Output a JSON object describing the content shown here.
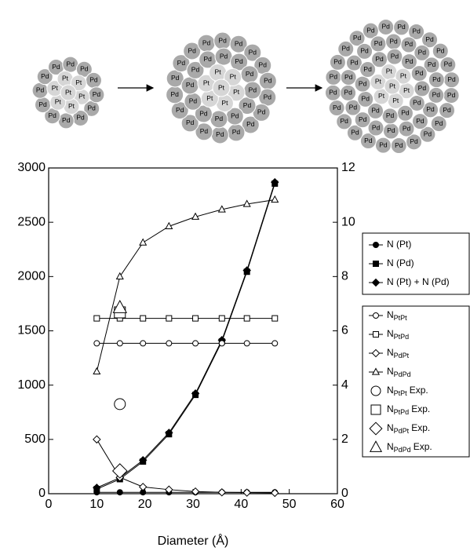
{
  "diagram": {
    "clusters": [
      {
        "rings": [
          [
            "Pt"
          ],
          [
            "Pt",
            "Pt",
            "Pt",
            "Pt",
            "Pt",
            "Pt"
          ],
          [
            "Pd",
            "Pd",
            "Pd",
            "Pd",
            "Pd",
            "Pd",
            "Pd",
            "Pd",
            "Pd",
            "Pd",
            "Pd",
            "Pd"
          ]
        ]
      },
      {
        "rings": [
          [
            "Pt"
          ],
          [
            "Pt",
            "Pt",
            "Pt",
            "Pt",
            "Pt",
            "Pt"
          ],
          [
            "Pd",
            "Pd",
            "Pd",
            "Pd",
            "Pd",
            "Pd",
            "Pd",
            "Pd",
            "Pd",
            "Pd",
            "Pd",
            "Pd"
          ],
          [
            "Pd",
            "Pd",
            "Pd",
            "Pd",
            "Pd",
            "Pd",
            "Pd",
            "Pd",
            "Pd",
            "Pd",
            "Pd",
            "Pd",
            "Pd",
            "Pd",
            "Pd",
            "Pd",
            "Pd",
            "Pd"
          ]
        ]
      },
      {
        "rings": [
          [
            "Pt"
          ],
          [
            "Pt",
            "Pt",
            "Pt",
            "Pt",
            "Pt",
            "Pt"
          ],
          [
            "Pd",
            "Pd",
            "Pd",
            "Pd",
            "Pd",
            "Pd",
            "Pd",
            "Pd",
            "Pd",
            "Pd",
            "Pd",
            "Pd"
          ],
          [
            "Pd",
            "Pd",
            "Pd",
            "Pd",
            "Pd",
            "Pd",
            "Pd",
            "Pd",
            "Pd",
            "Pd",
            "Pd",
            "Pd",
            "Pd",
            "Pd",
            "Pd",
            "Pd",
            "Pd",
            "Pd"
          ],
          [
            "Pd",
            "Pd",
            "Pd",
            "Pd",
            "Pd",
            "Pd",
            "Pd",
            "Pd",
            "Pd",
            "Pd",
            "Pd",
            "Pd",
            "Pd",
            "Pd",
            "Pd",
            "Pd",
            "Pd",
            "Pd",
            "Pd",
            "Pd",
            "Pd",
            "Pd",
            "Pd",
            "Pd"
          ]
        ]
      }
    ]
  },
  "chart_data": {
    "type": "line",
    "x_label": "Diameter (Å)",
    "xlim": [
      0,
      60
    ],
    "xticks": [
      0,
      10,
      20,
      30,
      40,
      50,
      60
    ],
    "ylim": [
      0,
      3000
    ],
    "yticks": [
      0,
      500,
      1000,
      1500,
      2000,
      2500,
      3000
    ],
    "y2lim": [
      0,
      12
    ],
    "y2ticks": [
      0,
      2,
      4,
      6,
      8,
      10,
      12
    ],
    "x": [
      10,
      14.8,
      19.6,
      25,
      30.5,
      36,
      41.2,
      47
    ],
    "series": [
      {
        "name": "N (Pt)",
        "marker": "circle",
        "filled": true,
        "line": true,
        "values": [
          13,
          13,
          13,
          13,
          13,
          13,
          13,
          13
        ]
      },
      {
        "name": "N (Pd)",
        "marker": "square",
        "filled": true,
        "line": true,
        "values": [
          42,
          134,
          296,
          548,
          910,
          1402,
          2044,
          2856
        ]
      },
      {
        "name": "N (Pt) + N (Pd)",
        "marker": "diamond",
        "filled": true,
        "line": true,
        "values": [
          55,
          147,
          309,
          561,
          923,
          1415,
          2057,
          2869
        ]
      },
      {
        "name": "N",
        "name_subscript": "PtPt",
        "marker": "circle",
        "filled": false,
        "line": true,
        "axis": "y2",
        "values": [
          5.54,
          5.54,
          5.54,
          5.54,
          5.54,
          5.54,
          5.54,
          5.54
        ]
      },
      {
        "name": "N",
        "name_subscript": "PtPd",
        "marker": "square",
        "filled": false,
        "line": true,
        "axis": "y2",
        "values": [
          6.46,
          6.46,
          6.46,
          6.46,
          6.46,
          6.46,
          6.46,
          6.46
        ]
      },
      {
        "name": "N",
        "name_subscript": "PdPt",
        "marker": "diamond",
        "filled": false,
        "line": true,
        "axis": "y2",
        "values": [
          2.0,
          0.6,
          0.25,
          0.15,
          0.08,
          0.05,
          0.04,
          0.03
        ]
      },
      {
        "name": "N",
        "name_subscript": "PdPd",
        "marker": "triangle",
        "filled": false,
        "line": true,
        "axis": "y2",
        "values": [
          4.5,
          8.0,
          9.25,
          9.85,
          10.2,
          10.47,
          10.67,
          10.83
        ]
      },
      {
        "name": "N",
        "name_subscript": "PtPt",
        "name_suffix": "Exp.",
        "marker": "circle",
        "filled": false,
        "line": false,
        "large": true,
        "axis": "y2",
        "x": [
          14.8
        ],
        "values": [
          3.3
        ]
      },
      {
        "name": "N",
        "name_subscript": "PtPd",
        "name_suffix": "Exp.",
        "marker": "square",
        "filled": false,
        "line": false,
        "large": true,
        "axis": "y2",
        "x": [
          14.8
        ],
        "values": [
          6.68
        ]
      },
      {
        "name": "N",
        "name_subscript": "PdPt",
        "name_suffix": "Exp.",
        "marker": "diamond",
        "filled": false,
        "line": false,
        "large": true,
        "axis": "y2",
        "x": [
          14.8
        ],
        "values": [
          0.84
        ]
      },
      {
        "name": "N",
        "name_subscript": "PdPd",
        "name_suffix": "Exp.",
        "marker": "triangle",
        "filled": false,
        "line": false,
        "large": true,
        "axis": "y2",
        "x": [
          14.8
        ],
        "values": [
          6.85
        ]
      }
    ]
  }
}
